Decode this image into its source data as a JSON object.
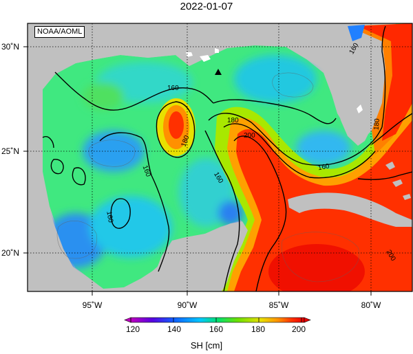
{
  "title": "2022-01-07",
  "credit": "NOAA/AOML",
  "lat_labels": [
    "30˚N",
    "25˚N",
    "20˚N"
  ],
  "lon_labels": [
    "95˚W",
    "90˚W",
    "85˚W",
    "80˚W"
  ],
  "contour_labels": [
    "160",
    "160",
    "160",
    "160",
    "160",
    "160",
    "180",
    "180",
    "180",
    "200",
    "200"
  ],
  "colorbar": {
    "label": "SH [cm]",
    "ticks": [
      "120",
      "140",
      "160",
      "180",
      "200"
    ],
    "colors": [
      "#c000c0",
      "#5a00e0",
      "#1060ff",
      "#00c8ff",
      "#00e070",
      "#70e000",
      "#e8e000",
      "#ff9000",
      "#ff3000",
      "#e80000"
    ]
  },
  "marker": "triangle-icon"
}
